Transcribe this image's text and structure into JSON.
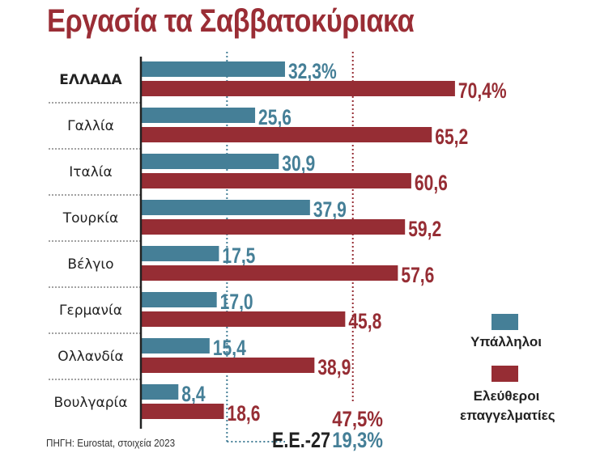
{
  "title": "Εργασία τα Σαββατοκύριακα",
  "source": "ΠΗΓΗ: Eurostat, στοιχεία 2023",
  "colors": {
    "employees": "#457f97",
    "self_employed": "#962d34",
    "title": "#9a2d35"
  },
  "chart_data": {
    "type": "bar",
    "orientation": "horizontal",
    "title": "Εργασία τα Σαββατοκύριακα",
    "categories": [
      "ΕΛΛΑΔΑ",
      "Γαλλία",
      "Ιταλία",
      "Τουρκία",
      "Βέλγιο",
      "Γερμανία",
      "Ολλανδία",
      "Βουλγαρία"
    ],
    "series": [
      {
        "name": "Υπάλληλοι",
        "values": [
          32.3,
          25.6,
          30.9,
          37.9,
          17.5,
          17.0,
          15.4,
          8.4
        ],
        "labels": [
          "32,3%",
          "25,6",
          "30,9",
          "37,9",
          "17,5",
          "17,0",
          "15,4",
          "8,4"
        ]
      },
      {
        "name": "Ελεύθεροι επαγγελματίες",
        "values": [
          70.4,
          65.2,
          60.6,
          59.2,
          57.6,
          45.8,
          38.9,
          18.6
        ],
        "labels": [
          "70,4%",
          "65,2",
          "60,6",
          "59,2",
          "57,6",
          "45,8",
          "38,9",
          "18,6"
        ]
      }
    ],
    "reference_lines": [
      {
        "label": "Ε.Ε.-27",
        "series": "Υπάλληλοι",
        "value": 19.3,
        "text": "19,3%"
      },
      {
        "series": "Ελεύθεροι επαγγελματίες",
        "value": 47.5,
        "text": "47,5%"
      }
    ],
    "legend": {
      "position": "right",
      "items": [
        "Υπάλληλοι",
        "Ελεύθεροι επαγγελματίες"
      ]
    },
    "grid": false
  }
}
